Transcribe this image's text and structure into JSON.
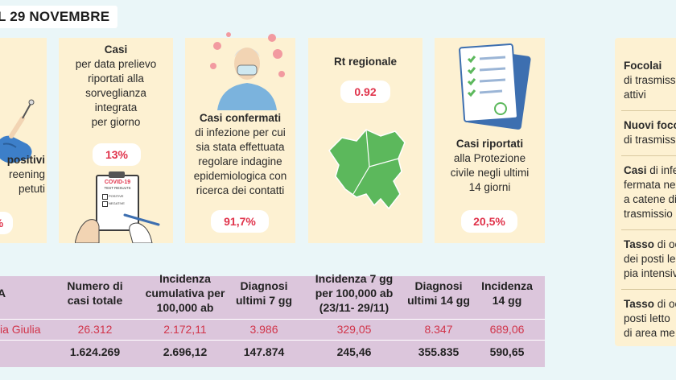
{
  "header": {
    "title": "L 29 NOVEMBRE"
  },
  "cards": [
    {
      "id": "c1",
      "lines": [
        "positivi",
        "reening",
        "petuti"
      ],
      "pill": "%"
    },
    {
      "id": "c2",
      "title": "Casi",
      "lines": [
        "per data prelievo",
        "riportati alla",
        "sorveglianza",
        "integrata",
        "per giorno"
      ],
      "pill": "13%",
      "doc_title": "COVID-19",
      "doc_sub": "TEST RESULTS",
      "doc_pos": "POSITIVE",
      "doc_neg": "NEGATIVE"
    },
    {
      "id": "c3",
      "title": "Casi confermati",
      "lines": [
        "di infezione per cui",
        "sia stata effettuata",
        "regolare indagine",
        "epidemiologica con",
        "ricerca dei contatti"
      ],
      "pill": "91,7%"
    },
    {
      "id": "c4",
      "title": "Rt regionale",
      "pill": "0.92"
    },
    {
      "id": "c5",
      "title": "Casi riportati",
      "lines": [
        "alla Protezione",
        "civile negli ultimi",
        "14 giorni"
      ],
      "pill": "20,5%"
    }
  ],
  "right_panel": [
    {
      "bold": "Focolai",
      "rest": "",
      "line2": "di trasmiss",
      "line3": "attivi"
    },
    {
      "bold": "Nuovi foco",
      "rest": "",
      "line2": "di trasmiss",
      "line3": ""
    },
    {
      "bold": "Casi",
      "rest": " di infe",
      "line2": "fermata  ne",
      "line3": "a catene di",
      "line4": "trasmissio"
    },
    {
      "bold": "Tasso",
      "rest": " di oc",
      "line2": "dei posti le",
      "line3": "pia intensiv"
    },
    {
      "bold": "Tasso",
      "rest": " di oc",
      "line2": "posti letto",
      "line3": "di area me"
    }
  ],
  "table": {
    "headers": [
      {
        "l1": "A",
        "l2": ""
      },
      {
        "l1": "Numero di",
        "l2": "casi totale"
      },
      {
        "l1": "Incidenza",
        "l2": "cumulativa per",
        "l3": "100,000 ab"
      },
      {
        "l1": "Diagnosi",
        "l2": "ultimi 7 gg"
      },
      {
        "l1": "Incidenza 7 gg",
        "l2": "per 100,000 ab",
        "l3": "(23/11- 29/11)"
      },
      {
        "l1": "Diagnosi",
        "l2": "ultimi 14 gg"
      },
      {
        "l1": "Incidenza",
        "l2": "14 gg"
      }
    ],
    "row_fvg": {
      "label": "ia Giulia",
      "values": [
        "26.312",
        "2.172,11",
        "3.986",
        "329,05",
        "8.347",
        "689,06"
      ]
    },
    "row_italia": {
      "label": "",
      "values": [
        "1.624.269",
        "2.696,12",
        "147.874",
        "245,46",
        "355.835",
        "590,65"
      ]
    }
  },
  "colors": {
    "card": "#fdf1d2",
    "table": "#dcc6dc",
    "accent": "#e0334b",
    "background": "#eaf6f8"
  }
}
